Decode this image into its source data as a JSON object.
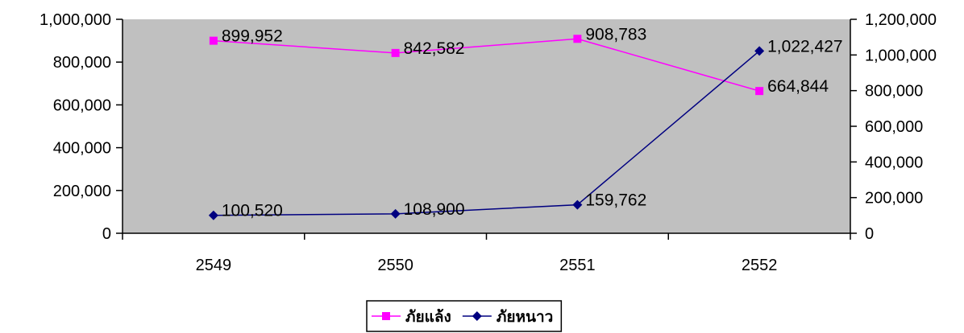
{
  "chart_data": {
    "type": "line",
    "title": "",
    "xlabel": "",
    "categories": [
      "2549",
      "2550",
      "2551",
      "2552"
    ],
    "y_left": {
      "ylim": [
        0,
        1000000
      ],
      "ticks": [
        0,
        200000,
        400000,
        600000,
        800000,
        1000000
      ],
      "tick_labels": [
        "0",
        "200,000",
        "400,000",
        "600,000",
        "800,000",
        "1,000,000"
      ]
    },
    "y_right": {
      "ylim": [
        0,
        1200000
      ],
      "ticks": [
        0,
        200000,
        400000,
        600000,
        800000,
        1000000,
        1200000
      ],
      "tick_labels": [
        "0",
        "200,000",
        "400,000",
        "600,000",
        "800,000",
        "1,000,000",
        "1,200,000"
      ]
    },
    "series": [
      {
        "name": "ภัยแล้ง",
        "axis": "left",
        "color": "#ff00ff",
        "marker": "square",
        "values": [
          899952,
          842582,
          908783,
          664844
        ],
        "labels": [
          "899,952",
          "842,582",
          "908,783",
          "664,844"
        ]
      },
      {
        "name": "ภัยหนาว",
        "axis": "right",
        "color": "#000080",
        "marker": "diamond",
        "values": [
          100520,
          108900,
          159762,
          1022427
        ],
        "labels": [
          "100,520",
          "108,900",
          "159,762",
          "1,022,427"
        ]
      }
    ],
    "grid": false,
    "plot_background": "#c0c0c0",
    "legend_position": "bottom-center"
  }
}
